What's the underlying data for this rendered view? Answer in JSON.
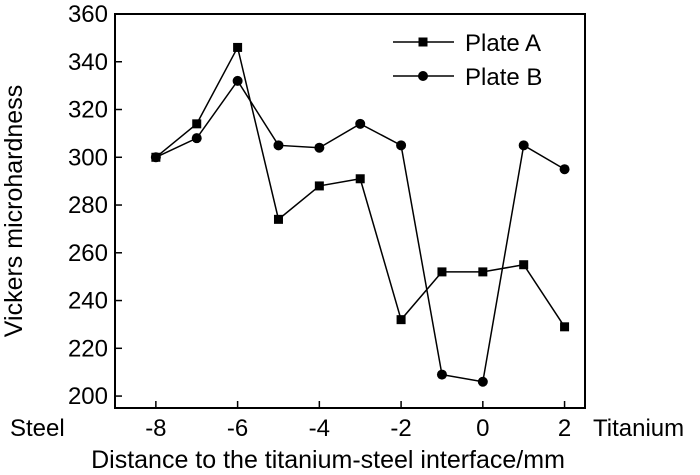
{
  "chart_data": {
    "type": "line",
    "title": "",
    "xlabel": "Distance to the titanium-steel interface/mm",
    "ylabel": "Vickers microhardness",
    "xlim": [
      -9,
      2.5
    ],
    "ylim": [
      195,
      360
    ],
    "x_ticks": [
      -8,
      -6,
      -4,
      -2,
      0,
      2
    ],
    "x_tick_labels": [
      "-8",
      "-6",
      "-4",
      "-2",
      "0",
      "2"
    ],
    "y_ticks": [
      200,
      220,
      240,
      260,
      280,
      300,
      320,
      340,
      360
    ],
    "y_tick_labels": [
      "200",
      "220",
      "240",
      "260",
      "280",
      "300",
      "320",
      "340",
      "360"
    ],
    "side_labels": {
      "left": "Steel",
      "right": "Titanium"
    },
    "grid": false,
    "legend_position": "top-right",
    "x": [
      -8,
      -7,
      -6,
      -5,
      -4,
      -3,
      -2,
      -1,
      0,
      1,
      2
    ],
    "series": [
      {
        "name": "Plate A",
        "marker": "square",
        "values": [
          300,
          314,
          346,
          274,
          288,
          291,
          232,
          252,
          252,
          255,
          229
        ]
      },
      {
        "name": "Plate B",
        "marker": "circle",
        "values": [
          300,
          308,
          332,
          305,
          304,
          314,
          305,
          209,
          206,
          305,
          295
        ]
      }
    ]
  },
  "colors": {
    "line": "#000000",
    "marker": "#000000",
    "background": "#ffffff"
  }
}
